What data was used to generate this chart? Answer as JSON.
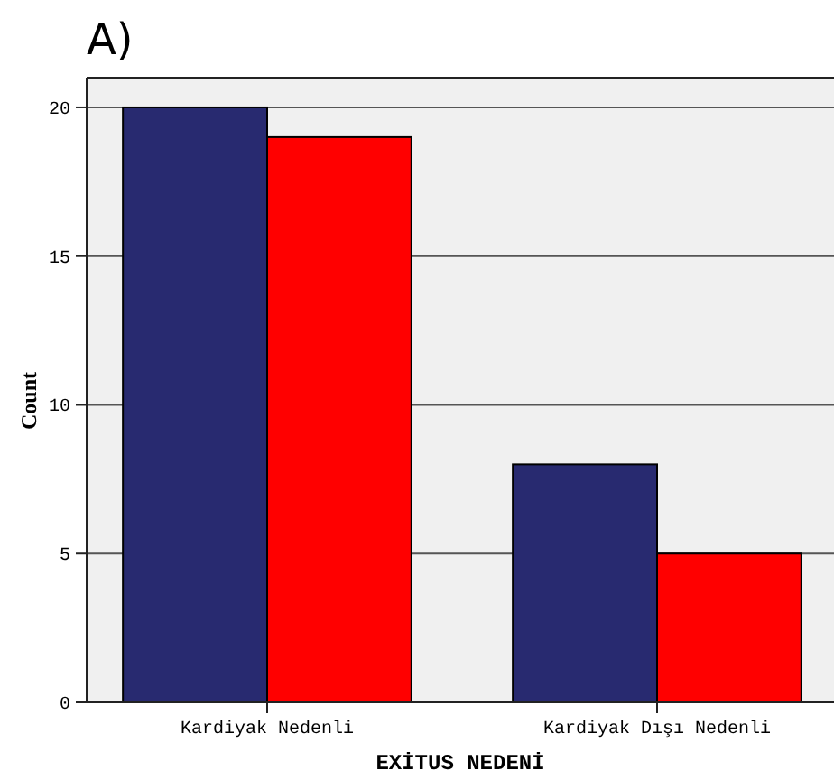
{
  "chart_data": {
    "type": "bar",
    "title": "A)",
    "xlabel": "EXİTUS NEDENİ",
    "ylabel": "Count",
    "categories": [
      "Kardiyak Nedenli",
      "Kardiyak Dışı Nedenli"
    ],
    "series": [
      {
        "color": "#282a70",
        "values": [
          20,
          8
        ]
      },
      {
        "color": "#ff0000",
        "values": [
          19,
          5
        ]
      }
    ],
    "ylim": [
      0,
      21
    ],
    "yticks": [
      0,
      5,
      10,
      15,
      20
    ],
    "grid": "y"
  }
}
